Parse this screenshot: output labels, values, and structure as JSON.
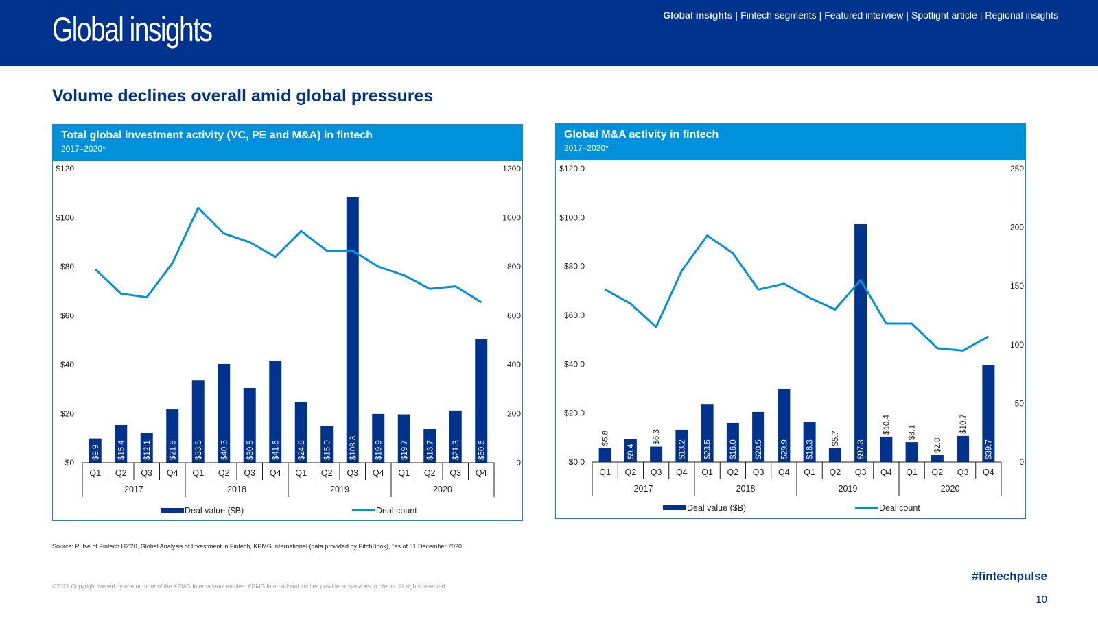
{
  "header": {
    "section_title": "Global insights",
    "nav": [
      "Global insights",
      "Fintech segments",
      "Featured interview",
      "Spotlight article",
      "Regional insights"
    ],
    "nav_active": 0
  },
  "headline": "Volume declines overall amid global pressures",
  "colors": {
    "brand": "#00338d",
    "accent": "#0091da",
    "bar": "#00338d",
    "line": "#0091da"
  },
  "chart_data": [
    {
      "type": "bar",
      "title": "Total global investment activity (VC, PE and M&A) in fintech",
      "subtitle": "2017–2020*",
      "categories": [
        "Q1",
        "Q2",
        "Q3",
        "Q4",
        "Q1",
        "Q2",
        "Q3",
        "Q4",
        "Q1",
        "Q2",
        "Q3",
        "Q4",
        "Q1",
        "Q2",
        "Q3",
        "Q4"
      ],
      "years": [
        "2017",
        "2018",
        "2019",
        "2020"
      ],
      "series": [
        {
          "name": "Deal value ($B)",
          "type": "bar",
          "axis": "left",
          "values": [
            9.9,
            15.4,
            12.1,
            21.8,
            33.5,
            40.3,
            30.5,
            41.6,
            24.8,
            15.0,
            108.3,
            19.9,
            19.7,
            13.7,
            21.3,
            50.6
          ],
          "labels": [
            "$9.9",
            "$15.4",
            "$12.1",
            "$21.8",
            "$33.5",
            "$40.3",
            "$30.5",
            "$41.6",
            "$24.8",
            "$15.0",
            "$108.3",
            "$19.9",
            "$19.7",
            "$13.7",
            "$21.3",
            "$50.6"
          ]
        },
        {
          "name": "Deal count",
          "type": "line",
          "axis": "right",
          "values": [
            790,
            690,
            675,
            815,
            1040,
            935,
            900,
            840,
            945,
            865,
            865,
            800,
            765,
            710,
            720,
            655
          ]
        }
      ],
      "ylim_left": [
        0,
        120
      ],
      "ylim_right": [
        0,
        1200
      ],
      "left_ticks": [
        "$0",
        "$20",
        "$40",
        "$60",
        "$80",
        "$100",
        "$120"
      ],
      "right_ticks": [
        "0",
        "200",
        "400",
        "600",
        "800",
        "1000",
        "1200"
      ],
      "legend": "bottom"
    },
    {
      "type": "bar",
      "title": "Global M&A activity in fintech",
      "subtitle": "2017–2020*",
      "categories": [
        "Q1",
        "Q2",
        "Q3",
        "Q4",
        "Q1",
        "Q2",
        "Q3",
        "Q4",
        "Q1",
        "Q2",
        "Q3",
        "Q4",
        "Q1",
        "Q2",
        "Q3",
        "Q4"
      ],
      "years": [
        "2017",
        "2018",
        "2019",
        "2020"
      ],
      "series": [
        {
          "name": "Deal value ($B)",
          "type": "bar",
          "axis": "left",
          "values": [
            5.8,
            9.4,
            6.3,
            13.2,
            23.5,
            16.0,
            20.5,
            29.9,
            16.3,
            5.7,
            97.3,
            10.4,
            8.1,
            2.8,
            10.7,
            39.7
          ],
          "labels": [
            "$5.8",
            "$9.4",
            "$6.3",
            "$13.2",
            "$23.5",
            "$16.0",
            "$20.5",
            "$29.9",
            "$16.3",
            "$5.7",
            "$97.3",
            "$10.4",
            "$8.1",
            "$2.8",
            "$10.7",
            "$39.7"
          ]
        },
        {
          "name": "Deal count",
          "type": "line",
          "axis": "right",
          "values": [
            147,
            135,
            115,
            163,
            193,
            178,
            147,
            152,
            140,
            130,
            155,
            118,
            118,
            97,
            95,
            107
          ]
        }
      ],
      "ylim_left": [
        0,
        120
      ],
      "ylim_right": [
        0,
        250
      ],
      "left_ticks": [
        "$0.0",
        "$20.0",
        "$40.0",
        "$60.0",
        "$80.0",
        "$100.0",
        "$120.0"
      ],
      "right_ticks": [
        "0",
        "50",
        "100",
        "150",
        "200",
        "250"
      ],
      "legend": "bottom"
    }
  ],
  "source": "Source: Pulse of Fintech H2'20, Global Analysis of Investment in Fintech, KPMG International (data provided by PitchBook), *as of 31 December 2020.",
  "copyright": "©2021 Copyright owned by one or more of the KPMG International entities. KPMG International entities provide no services to clients. All rights reserved.",
  "hashtag": "#fintechpulse",
  "page_number": "10"
}
